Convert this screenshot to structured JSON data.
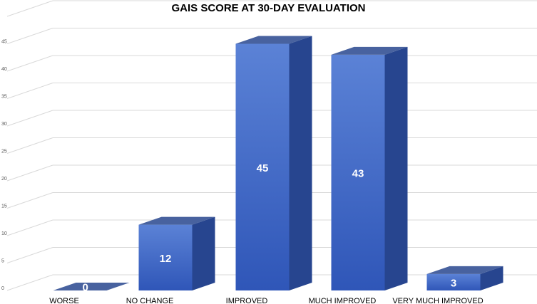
{
  "chart_data": {
    "type": "bar",
    "title": "GAIS SCORE AT 30-DAY EVALUATION",
    "xlabel": "",
    "ylabel": "",
    "categories": [
      "WORSE",
      "NO CHANGE",
      "IMPROVED",
      "MUCH IMPROVED",
      "VERY MUCH IMPROVED"
    ],
    "values": [
      0,
      12,
      45,
      43,
      3
    ],
    "ylim": [
      0,
      50
    ],
    "yticks": [
      0,
      5,
      10,
      15,
      20,
      25,
      30,
      35,
      40,
      45
    ],
    "grid": true,
    "legend": "none",
    "style": "3d-column",
    "colors": {
      "front_top": "#5b82d6",
      "front_bottom": "#2f56b8",
      "side": "#27458f",
      "top": "#48629f",
      "grid": "#d9d9d9"
    }
  }
}
